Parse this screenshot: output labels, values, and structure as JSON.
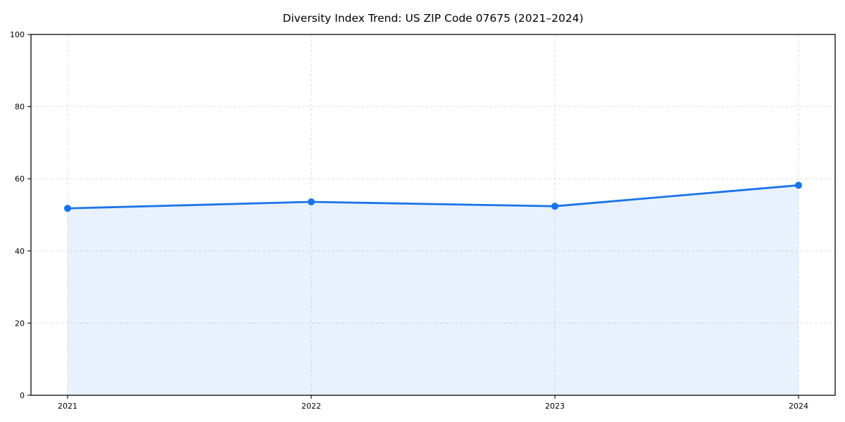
{
  "page": {
    "background_color": "#ffffff"
  },
  "chart_data": {
    "type": "line",
    "title": "Diversity Index Trend: US ZIP Code 07675 (2021–2024)",
    "categories": [
      "2021",
      "2022",
      "2023",
      "2024"
    ],
    "series": [
      {
        "name": "Diversity Index",
        "values": [
          51.8,
          53.6,
          52.4,
          58.2
        ]
      }
    ],
    "xlabel": "",
    "ylabel": "",
    "ylim": [
      0,
      100
    ],
    "yticks": [
      0,
      20,
      40,
      60,
      80,
      100
    ],
    "grid": true,
    "grid_style": "dashed",
    "legend_position": "none",
    "area_fill": true,
    "marker": "circle",
    "colors": {
      "line": "#1a73e8",
      "marker": "#1a73e8",
      "fill": "#1a73e8",
      "fill_opacity": 0.1,
      "grid": "#e0e0e0",
      "spine": "#1a1a1a",
      "text": "#000000"
    }
  }
}
